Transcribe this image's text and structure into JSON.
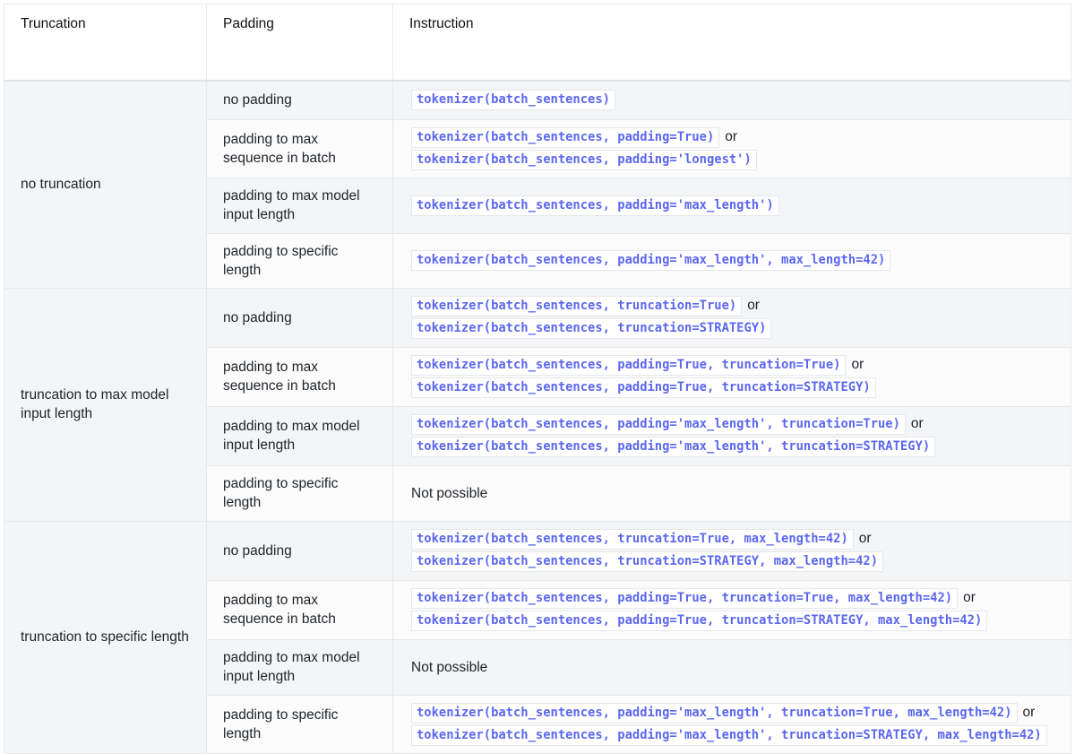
{
  "headers": [
    "Truncation",
    "Padding",
    "Instruction"
  ],
  "or_label": "or",
  "groups": [
    {
      "truncation": "no truncation",
      "rows": [
        {
          "padding": "no padding",
          "height": 43,
          "codes": [
            "tokenizer(batch_sentences)"
          ]
        },
        {
          "padding": "padding to max sequence in batch",
          "height": 65,
          "codes": [
            "tokenizer(batch_sentences, padding=True)",
            "tokenizer(batch_sentences, padding='longest')"
          ]
        },
        {
          "padding": "padding to max model input length",
          "height": 62,
          "codes": [
            "tokenizer(batch_sentences, padding='max_length')"
          ]
        },
        {
          "padding": "padding to specific length",
          "height": 61,
          "codes": [
            "tokenizer(batch_sentences, padding='max_length', max_length=42)"
          ]
        }
      ]
    },
    {
      "truncation": "truncation to max model input length",
      "rows": [
        {
          "padding": "no padding",
          "height": 66,
          "codes": [
            "tokenizer(batch_sentences, truncation=True)",
            "tokenizer(batch_sentences, truncation=STRATEGY)"
          ]
        },
        {
          "padding": "padding to max sequence in batch",
          "height": 66,
          "codes": [
            "tokenizer(batch_sentences, padding=True, truncation=True)",
            "tokenizer(batch_sentences, padding=True, truncation=STRATEGY)"
          ]
        },
        {
          "padding": "padding to max model input length",
          "height": 66,
          "codes": [
            "tokenizer(batch_sentences, padding='max_length', truncation=True)",
            "tokenizer(batch_sentences, padding='max_length', truncation=STRATEGY)"
          ]
        },
        {
          "padding": "padding to specific length",
          "height": 62,
          "text": "Not possible"
        }
      ]
    },
    {
      "truncation": "truncation to specific length",
      "rows": [
        {
          "padding": "no padding",
          "height": 66,
          "codes": [
            "tokenizer(batch_sentences, truncation=True, max_length=42)",
            "tokenizer(batch_sentences, truncation=STRATEGY, max_length=42)"
          ]
        },
        {
          "padding": "padding to max sequence in batch",
          "height": 66,
          "codes": [
            "tokenizer(batch_sentences, padding=True, truncation=True, max_length=42)",
            "tokenizer(batch_sentences, padding=True, truncation=STRATEGY, max_length=42)"
          ]
        },
        {
          "padding": "padding to max model input length",
          "height": 62,
          "text": "Not possible"
        },
        {
          "padding": "padding to specific length",
          "height": 65,
          "codes": [
            "tokenizer(batch_sentences, padding='max_length', truncation=True, max_length=42)",
            "tokenizer(batch_sentences, padding='max_length', truncation=STRATEGY, max_length=42)"
          ]
        }
      ]
    }
  ],
  "colors": {
    "code_text": "#5b67f0",
    "stripe": "#f4f5f7",
    "border": "#e7e8ea"
  }
}
